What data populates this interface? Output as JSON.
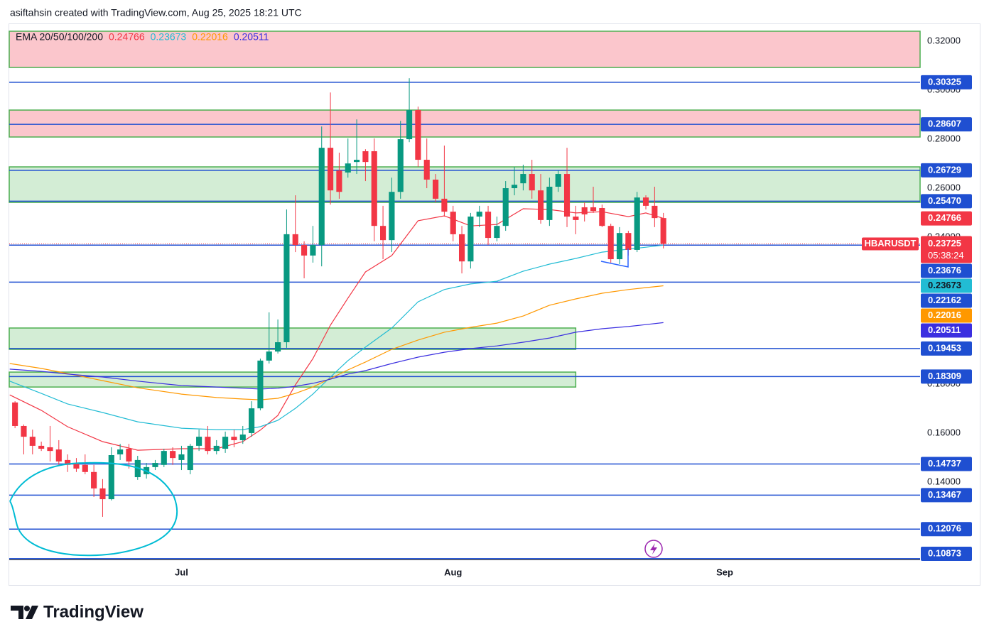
{
  "header": "asiftahsin created with TradingView.com, Aug 25, 2025 18:21 UTC",
  "brand": "TradingView",
  "chart_data": {
    "type": "candlestick",
    "symbol": "HBARUSDT",
    "countdown": "05:38:24",
    "up_color": "#089981",
    "down_color": "#f23645",
    "xlim": [
      -0.66,
      103.3
    ],
    "xticks": [
      {
        "value": 19,
        "label": "Jul"
      },
      {
        "value": 50,
        "label": "Aug"
      },
      {
        "value": 81,
        "label": "Sep"
      }
    ],
    "ylim": [
      0.1078,
      0.3267
    ],
    "yticks": [
      {
        "value": 0.32,
        "label": "0.32000"
      },
      {
        "value": 0.3,
        "label": "0.30000"
      },
      {
        "value": 0.28,
        "label": "0.28000"
      },
      {
        "value": 0.26,
        "label": "0.26000"
      },
      {
        "value": 0.24,
        "label": "0.24000"
      },
      {
        "value": 0.18,
        "label": "0.18000"
      },
      {
        "value": 0.16,
        "label": "0.16000"
      },
      {
        "value": 0.14,
        "label": "0.14000"
      }
    ],
    "grid": false,
    "open": [
      0.1725,
      0.1629,
      0.1585,
      0.1548,
      0.1542,
      0.1533,
      0.149,
      0.1475,
      0.147,
      0.1441,
      0.1374,
      0.133,
      0.1513,
      0.1536,
      0.142,
      0.1432,
      0.1461,
      0.147,
      0.1527,
      0.149,
      0.1449,
      0.1548,
      0.1585,
      0.1527,
      0.1536,
      0.1585,
      0.1571,
      0.16,
      0.1701,
      0.1896,
      0.1933,
      0.1971,
      0.2412,
      0.2368,
      0.2325,
      0.2368,
      0.2765,
      0.2672,
      0.2664,
      0.2707,
      0.2751,
      0.2751,
      0.2446,
      0.2388,
      0.2585,
      0.28,
      0.2919,
      0.2716,
      0.2635,
      0.2557,
      0.2504,
      0.2412,
      0.2301,
      0.2484,
      0.2504,
      0.2397,
      0.2446,
      0.26,
      0.262,
      0.2658,
      0.2591,
      0.247,
      0.2606,
      0.2658,
      0.2484,
      0.2522,
      0.2522,
      0.2519,
      0.2446,
      0.231,
      0.2417,
      0.2348,
      0.2562,
      0.2528,
      0.2478
    ],
    "high": [
      0.173,
      0.1635,
      0.1614,
      0.1565,
      0.1629,
      0.1571,
      0.1513,
      0.1498,
      0.1513,
      0.147,
      0.1412,
      0.1542,
      0.1556,
      0.1556,
      0.1507,
      0.1478,
      0.149,
      0.1536,
      0.1542,
      0.1548,
      0.1556,
      0.1614,
      0.1629,
      0.1571,
      0.1606,
      0.1614,
      0.1629,
      0.173,
      0.1904,
      0.2093,
      0.2064,
      0.2513,
      0.2571,
      0.2383,
      0.2446,
      0.2852,
      0.2991,
      0.2745,
      0.2803,
      0.2881,
      0.2759,
      0.2803,
      0.2528,
      0.2643,
      0.2875,
      0.3049,
      0.2933,
      0.2803,
      0.2658,
      0.2774,
      0.2528,
      0.2446,
      0.2499,
      0.2528,
      0.2528,
      0.2484,
      0.2629,
      0.2687,
      0.2696,
      0.2716,
      0.2658,
      0.2643,
      0.2672,
      0.2765,
      0.2528,
      0.2542,
      0.2606,
      0.2533,
      0.2455,
      0.2441,
      0.2426,
      0.2585,
      0.2571,
      0.2606,
      0.2499
    ],
    "low": [
      0.162,
      0.1513,
      0.1513,
      0.1527,
      0.1484,
      0.147,
      0.1441,
      0.1441,
      0.1432,
      0.1339,
      0.1258,
      0.1325,
      0.149,
      0.1455,
      0.1409,
      0.1414,
      0.1449,
      0.1461,
      0.147,
      0.1449,
      0.1432,
      0.1527,
      0.1513,
      0.1513,
      0.1519,
      0.1542,
      0.1556,
      0.1585,
      0.1693,
      0.1884,
      0.1925,
      0.1948,
      0.2339,
      0.2232,
      0.2296,
      0.2281,
      0.2533,
      0.2557,
      0.2643,
      0.2658,
      0.2629,
      0.2383,
      0.231,
      0.2339,
      0.2557,
      0.2788,
      0.2687,
      0.26,
      0.2542,
      0.2484,
      0.2383,
      0.2252,
      0.2272,
      0.2441,
      0.2368,
      0.2383,
      0.2426,
      0.2571,
      0.2591,
      0.2557,
      0.2455,
      0.2446,
      0.2585,
      0.2441,
      0.2412,
      0.2464,
      0.2499,
      0.2441,
      0.2296,
      0.229,
      0.2325,
      0.2339,
      0.2513,
      0.2441,
      0.2354
    ],
    "close": [
      0.1629,
      0.1585,
      0.1548,
      0.1536,
      0.1527,
      0.1484,
      0.147,
      0.1455,
      0.1441,
      0.1374,
      0.133,
      0.151,
      0.1533,
      0.1484,
      0.149,
      0.1461,
      0.1478,
      0.1527,
      0.1498,
      0.1513,
      0.1548,
      0.1585,
      0.1527,
      0.1548,
      0.1585,
      0.1571,
      0.1594,
      0.1701,
      0.1896,
      0.1933,
      0.1971,
      0.2412,
      0.2368,
      0.2325,
      0.2368,
      0.2765,
      0.2591,
      0.2585,
      0.2701,
      0.2716,
      0.2707,
      0.2446,
      0.2388,
      0.2585,
      0.28,
      0.2919,
      0.2716,
      0.2635,
      0.2557,
      0.2504,
      0.2412,
      0.2301,
      0.2484,
      0.2504,
      0.2397,
      0.2446,
      0.26,
      0.2614,
      0.2658,
      0.2591,
      0.247,
      0.2606,
      0.2658,
      0.2484,
      0.247,
      0.2493,
      0.2507,
      0.2446,
      0.231,
      0.2417,
      0.2348,
      0.2562,
      0.2528,
      0.2478,
      0.23725
    ],
    "ema": {
      "label": "EMA 20/50/100/200",
      "x": [
        -0.6,
        3,
        6,
        10,
        14,
        19,
        23,
        26,
        28,
        30,
        32,
        34,
        36,
        38,
        40,
        43,
        46,
        49,
        52,
        55,
        58,
        61,
        64,
        67,
        70,
        72,
        74
      ],
      "series": [
        {
          "color": "#f23645",
          "text_color": "#ffffff",
          "values": [
            0.1756,
            0.1693,
            0.1626,
            0.1565,
            0.153,
            0.1536,
            0.1536,
            0.1565,
            0.1612,
            0.1672,
            0.1797,
            0.1904,
            0.2041,
            0.2151,
            0.2258,
            0.2325,
            0.2467,
            0.2487,
            0.2446,
            0.2452,
            0.2516,
            0.2513,
            0.2499,
            0.2504,
            0.2484,
            0.2499,
            0.24766
          ]
        },
        {
          "color": "#22bcd4",
          "text_color": "#131722",
          "values": [
            0.1812,
            0.1762,
            0.1719,
            0.1684,
            0.1646,
            0.162,
            0.1614,
            0.1614,
            0.1626,
            0.1652,
            0.1701,
            0.1759,
            0.1829,
            0.1896,
            0.1951,
            0.2029,
            0.2136,
            0.2186,
            0.2209,
            0.222,
            0.2261,
            0.229,
            0.2313,
            0.2339,
            0.2351,
            0.2359,
            0.23673
          ]
        },
        {
          "color": "#ff9800",
          "text_color": "#ffffff",
          "values": [
            0.1884,
            0.1864,
            0.1843,
            0.1814,
            0.1785,
            0.1759,
            0.1745,
            0.1739,
            0.1736,
            0.1742,
            0.1762,
            0.1788,
            0.1823,
            0.1858,
            0.189,
            0.1942,
            0.198,
            0.2012,
            0.2032,
            0.2049,
            0.2078,
            0.2122,
            0.2148,
            0.2171,
            0.2186,
            0.2194,
            0.22016
          ]
        },
        {
          "color": "#3b2fe0",
          "text_color": "#ffffff",
          "values": [
            0.1861,
            0.1852,
            0.1841,
            0.1829,
            0.1812,
            0.1794,
            0.1788,
            0.1783,
            0.178,
            0.1783,
            0.1791,
            0.1803,
            0.182,
            0.1841,
            0.1855,
            0.1884,
            0.191,
            0.193,
            0.1945,
            0.1956,
            0.1971,
            0.1988,
            0.2012,
            0.2026,
            0.2035,
            0.2043,
            0.20511
          ]
        }
      ]
    },
    "level_color": "#1f4fd1",
    "levels": [
      0.30325,
      0.28607,
      0.26729,
      {
        "value": 0.2547,
        "label": "0.25470"
      },
      0.23676,
      0.22162,
      0.19453,
      0.18309,
      0.14737,
      0.13467,
      0.12076,
      0.10873
    ],
    "zone_border": "#4caf50",
    "zones": [
      {
        "from": 0.3093,
        "to": 0.3241,
        "color": "#fbc6cc"
      },
      {
        "from": 0.2809,
        "to": 0.2919,
        "color": "#fbc6cc"
      },
      {
        "from": 0.2542,
        "to": 0.2687,
        "color": "#d3edd5"
      },
      {
        "from": 0.1942,
        "to": 0.2029,
        "color": "#d3edd5",
        "x_end": 64
      },
      {
        "from": 0.1788,
        "to": 0.1849,
        "color": "#d3edd5",
        "x_end": 64
      }
    ]
  }
}
